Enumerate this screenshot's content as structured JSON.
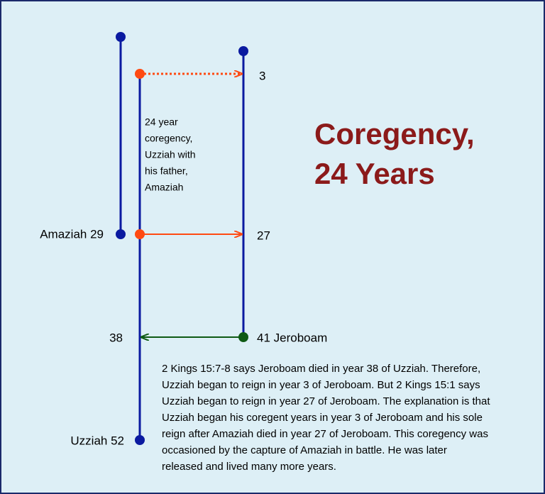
{
  "title": {
    "lines": [
      "Coregency,",
      "24 Years"
    ]
  },
  "labels": {
    "amaziah": "Amaziah 29",
    "uzziah": "Uzziah 52",
    "jeroboam": "41 Jeroboam",
    "year3": "3",
    "year27": "27",
    "year38": "38"
  },
  "note": {
    "lines": [
      "24 year",
      "coregency,",
      "Uzziah with",
      "his father,",
      "Amaziah"
    ]
  },
  "explanation": {
    "lines": [
      "2 Kings 15:7-8 says Jeroboam died in year 38 of Uzziah. Therefore,",
      "Uzziah began to reign in year 3 of Jeroboam. But 2 Kings 15:1 says",
      "Uzziah began to reign in year 27 of Jeroboam. The explanation is that",
      "Uzziah began his coregent years in year 3 of Jeroboam and his sole",
      "reign after Amaziah died in year 27 of Jeroboam. This coregency was",
      "occasioned by the capture of Amaziah in battle. He was later",
      "released and lived many more years."
    ]
  }
}
